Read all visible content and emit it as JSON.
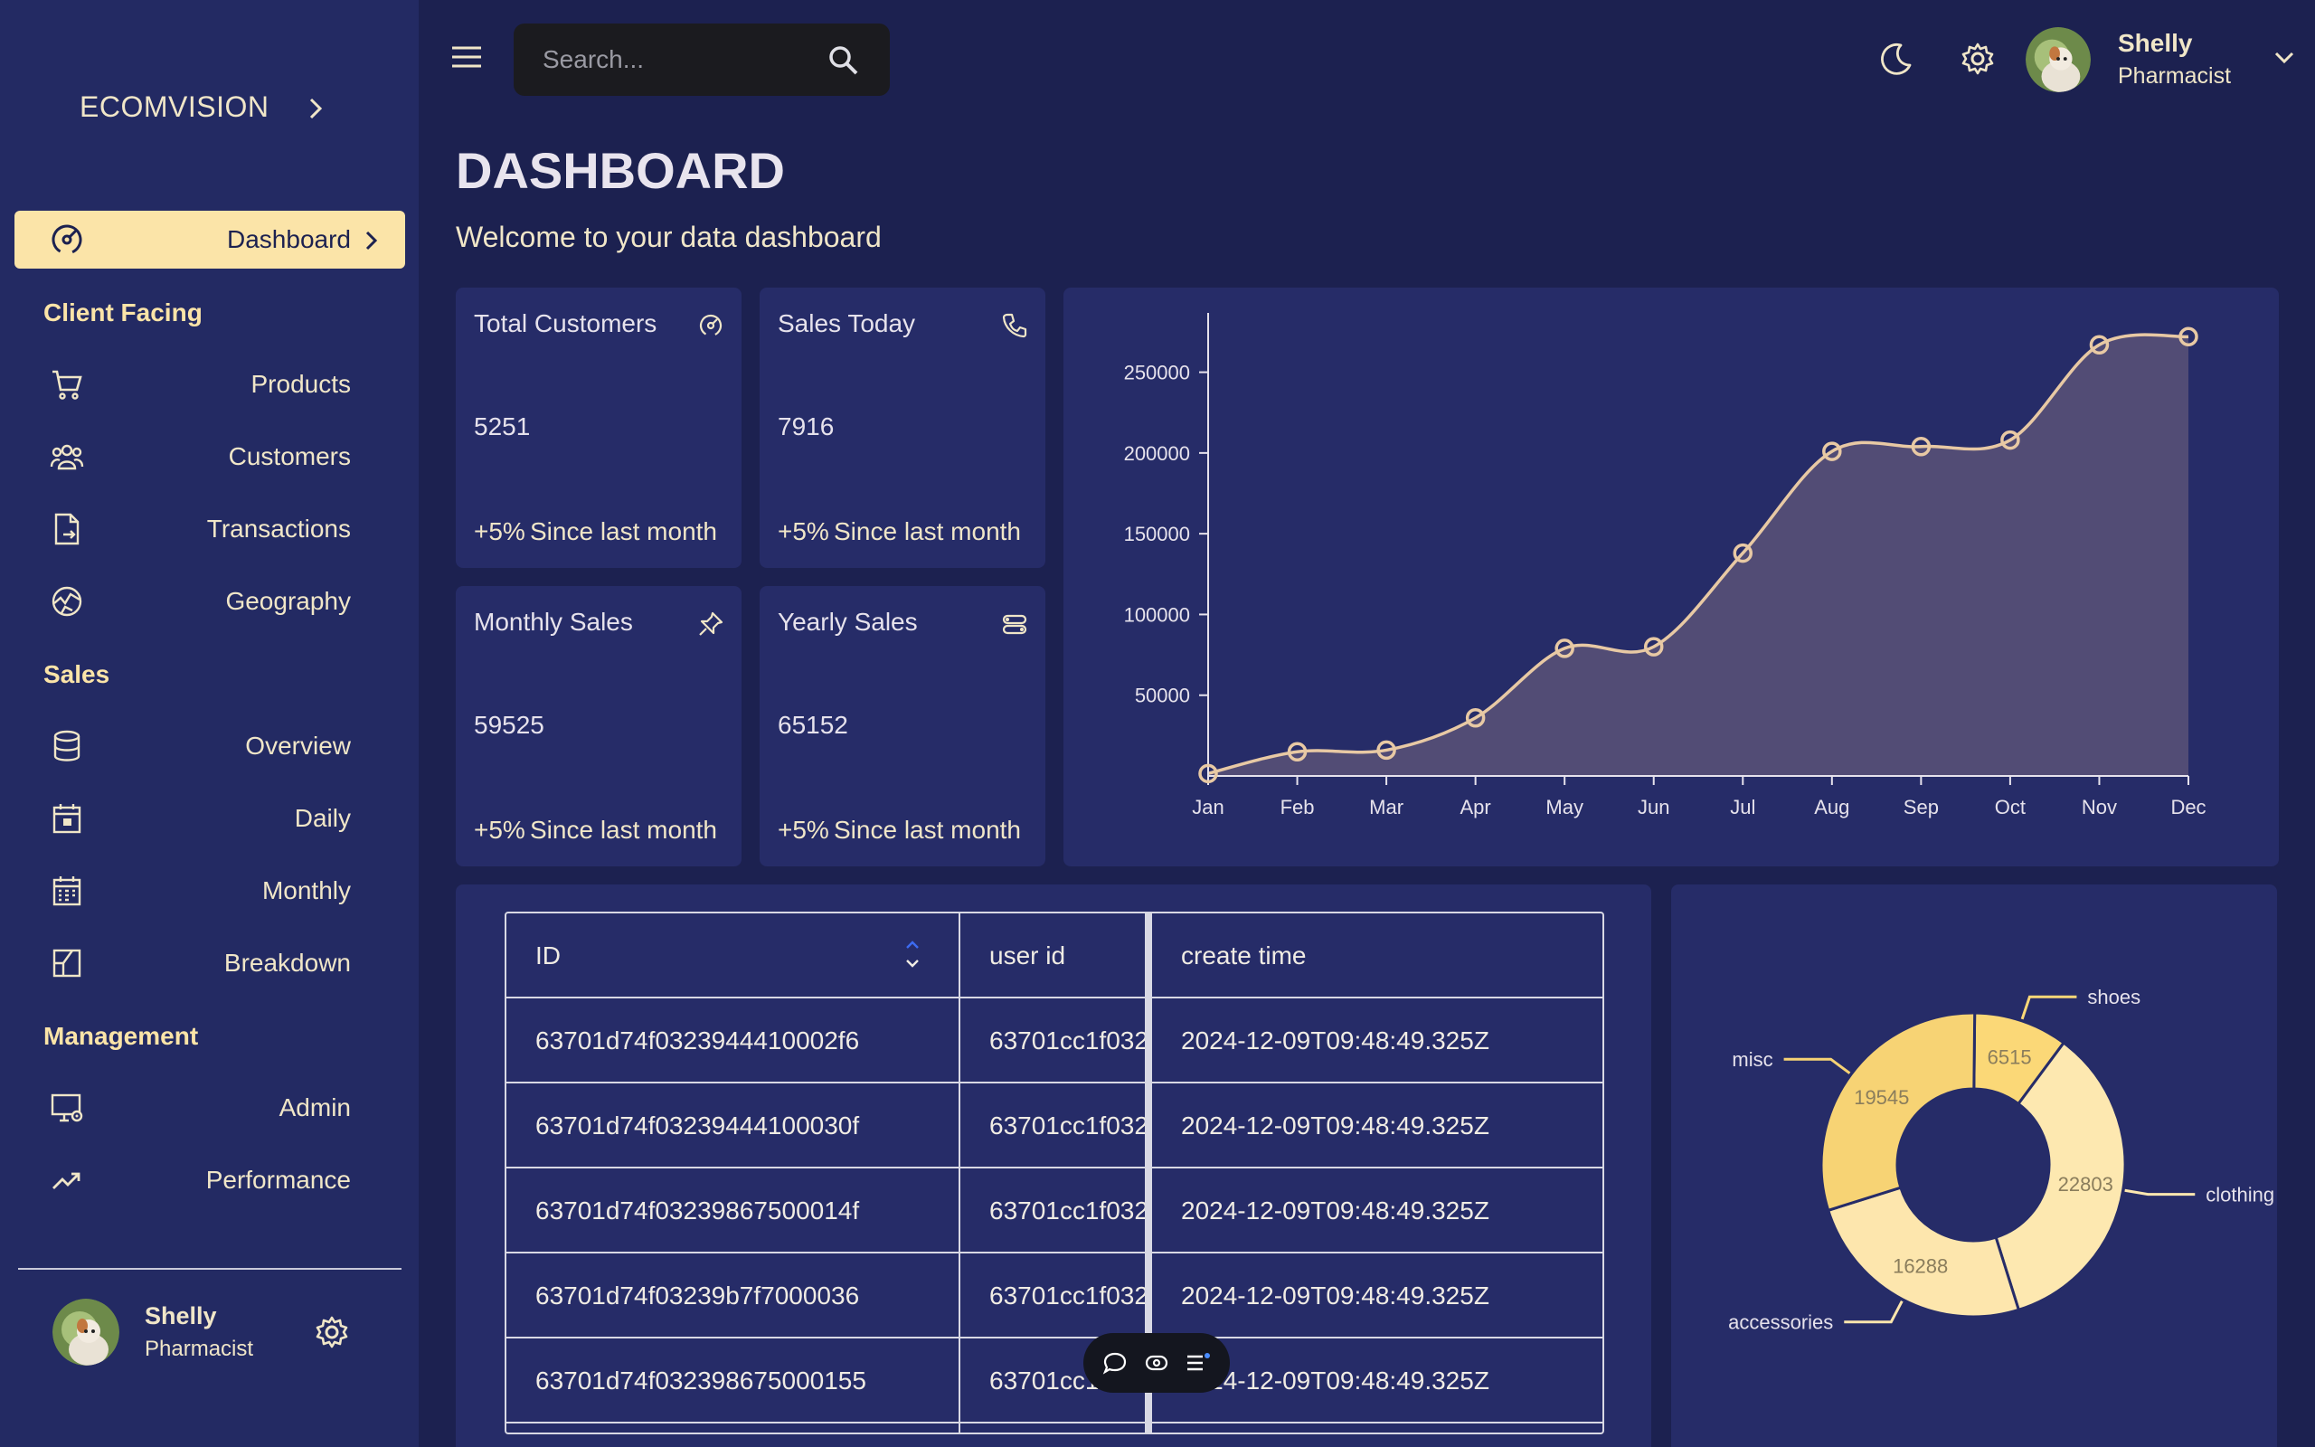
{
  "brand": {
    "name": "ECOMVISION"
  },
  "sidebar": {
    "active": {
      "label": "Dashboard",
      "icon": "dashboard-gauge-icon"
    },
    "sections": [
      {
        "title": "Client Facing",
        "items": [
          {
            "label": "Products",
            "icon": "cart-icon"
          },
          {
            "label": "Customers",
            "icon": "people-icon"
          },
          {
            "label": "Transactions",
            "icon": "receipt-icon"
          },
          {
            "label": "Geography",
            "icon": "globe-icon"
          }
        ]
      },
      {
        "title": "Sales",
        "items": [
          {
            "label": "Overview",
            "icon": "database-icon"
          },
          {
            "label": "Daily",
            "icon": "calendar-day-icon"
          },
          {
            "label": "Monthly",
            "icon": "calendar-month-icon"
          },
          {
            "label": "Breakdown",
            "icon": "breakdown-icon"
          }
        ]
      },
      {
        "title": "Management",
        "items": [
          {
            "label": "Admin",
            "icon": "admin-monitor-icon"
          },
          {
            "label": "Performance",
            "icon": "trending-up-icon"
          }
        ]
      }
    ],
    "user": {
      "name": "Shelly",
      "role": "Pharmacist"
    }
  },
  "topbar": {
    "search_placeholder": "Search...",
    "user": {
      "name": "Shelly",
      "role": "Pharmacist"
    }
  },
  "header": {
    "title": "DASHBOARD",
    "subtitle": "Welcome to your data dashboard"
  },
  "stats": [
    {
      "title": "Total Customers",
      "value": "5251",
      "change": "+5%",
      "since": "Since last month",
      "icon": "gauge-icon"
    },
    {
      "title": "Sales Today",
      "value": "7916",
      "change": "+5%",
      "since": "Since last month",
      "icon": "phone-icon"
    },
    {
      "title": "Monthly Sales",
      "value": "59525",
      "change": "+5%",
      "since": "Since last month",
      "icon": "pin-icon"
    },
    {
      "title": "Yearly Sales",
      "value": "65152",
      "change": "+5%",
      "since": "Since last month",
      "icon": "toggle-icon"
    }
  ],
  "chart_data": [
    {
      "type": "area",
      "categories": [
        "Jan",
        "Feb",
        "Mar",
        "Apr",
        "May",
        "Jun",
        "Jul",
        "Aug",
        "Sep",
        "Oct",
        "Nov",
        "Dec"
      ],
      "series": [
        {
          "values": [
            1500,
            15000,
            16000,
            36000,
            79000,
            80000,
            138000,
            201000,
            204000,
            208000,
            267000,
            272000
          ]
        }
      ],
      "yticks": [
        50000,
        100000,
        150000,
        200000,
        250000
      ],
      "ylim": [
        0,
        280000
      ],
      "color": "#e8c9a4",
      "fill": "#5a5278"
    },
    {
      "type": "pie",
      "donut": true,
      "slices": [
        {
          "label": "shoes",
          "value": 6515,
          "color": "#fbd877"
        },
        {
          "label": "clothing",
          "value": 22803,
          "color": "#fde8b0"
        },
        {
          "label": "accessories",
          "value": 16288,
          "color": "#fde6ad"
        },
        {
          "label": "misc",
          "value": 19545,
          "color": "#f7d374"
        }
      ]
    }
  ],
  "table": {
    "columns": [
      "ID",
      "user id",
      "create time"
    ],
    "rows": [
      [
        "63701d74f0323944410002f6",
        "63701cc1f032",
        "2024-12-09T09:48:49.325Z"
      ],
      [
        "63701d74f03239444100030f",
        "63701cc1f032",
        "2024-12-09T09:48:49.325Z"
      ],
      [
        "63701d74f03239867500014f",
        "63701cc1f032",
        "2024-12-09T09:48:49.325Z"
      ],
      [
        "63701d74f03239b7f7000036",
        "63701cc1f032",
        "2024-12-09T09:48:49.325Z"
      ],
      [
        "63701d74f032398675000155",
        "63701cc1f032",
        "2024-12-09T09:48:49.325Z"
      ]
    ]
  },
  "colors": {
    "background": "#1c2150",
    "sidebar": "#232a63",
    "panel": "#262c68",
    "accent": "#fbe4a8"
  }
}
